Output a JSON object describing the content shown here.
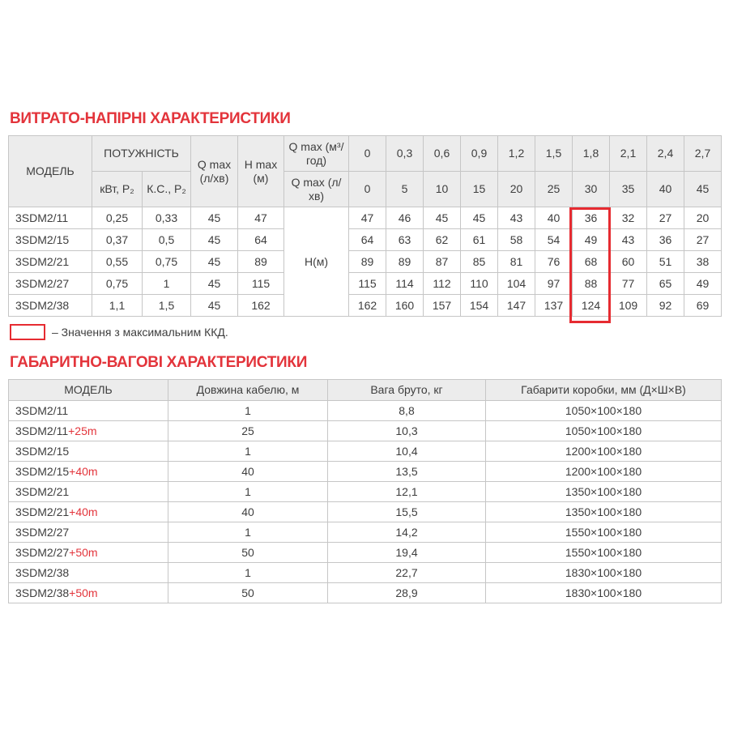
{
  "colors": {
    "accent_red": "#e3343b",
    "box_red": "#e62b31",
    "header_bg": "#ececec",
    "border": "#c6c6c6",
    "text": "#3e3e3e",
    "page_bg": "#ffffff"
  },
  "section1": {
    "title": "ВИТРАТО-НАПІРНІ ХАРАКТЕРИСТИКИ",
    "table": {
      "header": {
        "model": "МОДЕЛЬ",
        "power": "ПОТУЖНІСТЬ",
        "power_kw": "кВт, Р₂",
        "power_hp": "К.С., Р₂",
        "qmax_lmin": "Q max (л/хв)",
        "hmax_m": "H max (м)",
        "qmax_m3h": "Q max (м³/год)",
        "qmax_lmin2": "Q max (л/хв)"
      },
      "flow_m3h": [
        "0",
        "0,3",
        "0,6",
        "0,9",
        "1,2",
        "1,5",
        "1,8",
        "2,1",
        "2,4",
        "2,7"
      ],
      "flow_lmin": [
        "0",
        "5",
        "10",
        "15",
        "20",
        "25",
        "30",
        "35",
        "40",
        "45"
      ],
      "head_label": "Н(м)",
      "highlight_col": 6,
      "rows": [
        {
          "model": "3SDM2/11",
          "kw": "0,25",
          "hp": "0,33",
          "qmax": "45",
          "hmax": "47",
          "heads": [
            "47",
            "46",
            "45",
            "45",
            "43",
            "40",
            "36",
            "32",
            "27",
            "20"
          ]
        },
        {
          "model": "3SDM2/15",
          "kw": "0,37",
          "hp": "0,5",
          "qmax": "45",
          "hmax": "64",
          "heads": [
            "64",
            "63",
            "62",
            "61",
            "58",
            "54",
            "49",
            "43",
            "36",
            "27"
          ]
        },
        {
          "model": "3SDM2/21",
          "kw": "0,55",
          "hp": "0,75",
          "qmax": "45",
          "hmax": "89",
          "heads": [
            "89",
            "89",
            "87",
            "85",
            "81",
            "76",
            "68",
            "60",
            "51",
            "38"
          ]
        },
        {
          "model": "3SDM2/27",
          "kw": "0,75",
          "hp": "1",
          "qmax": "45",
          "hmax": "115",
          "heads": [
            "115",
            "114",
            "112",
            "110",
            "104",
            "97",
            "88",
            "77",
            "65",
            "49"
          ]
        },
        {
          "model": "3SDM2/38",
          "kw": "1,1",
          "hp": "1,5",
          "qmax": "45",
          "hmax": "162",
          "heads": [
            "162",
            "160",
            "157",
            "154",
            "147",
            "137",
            "124",
            "109",
            "92",
            "69"
          ]
        }
      ],
      "legend": "– Значення з максимальним ККД."
    }
  },
  "section2": {
    "title": "ГАБАРИТНО-ВАГОВІ ХАРАКТЕРИСТИКИ",
    "columns": {
      "model": "МОДЕЛЬ",
      "cable": "Довжина кабелю, м",
      "weight": "Вага бруто, кг",
      "box": "Габарити коробки, мм (Д×Ш×В)"
    },
    "rows": [
      {
        "model": "3SDM2/11",
        "suffix": "",
        "cable": "1",
        "weight": "8,8",
        "box": "1050×100×180"
      },
      {
        "model": "3SDM2/11",
        "suffix": "+25m",
        "cable": "25",
        "weight": "10,3",
        "box": "1050×100×180"
      },
      {
        "model": "3SDM2/15",
        "suffix": "",
        "cable": "1",
        "weight": "10,4",
        "box": "1200×100×180"
      },
      {
        "model": "3SDM2/15",
        "suffix": "+40m",
        "cable": "40",
        "weight": "13,5",
        "box": "1200×100×180"
      },
      {
        "model": "3SDM2/21",
        "suffix": "",
        "cable": "1",
        "weight": "12,1",
        "box": "1350×100×180"
      },
      {
        "model": "3SDM2/21",
        "suffix": "+40m",
        "cable": "40",
        "weight": "15,5",
        "box": "1350×100×180"
      },
      {
        "model": "3SDM2/27",
        "suffix": "",
        "cable": "1",
        "weight": "14,2",
        "box": "1550×100×180"
      },
      {
        "model": "3SDM2/27",
        "suffix": "+50m",
        "cable": "50",
        "weight": "19,4",
        "box": "1550×100×180"
      },
      {
        "model": "3SDM2/38",
        "suffix": "",
        "cable": "1",
        "weight": "22,7",
        "box": "1830×100×180"
      },
      {
        "model": "3SDM2/38",
        "suffix": "+50m",
        "cable": "50",
        "weight": "28,9",
        "box": "1830×100×180"
      }
    ]
  }
}
